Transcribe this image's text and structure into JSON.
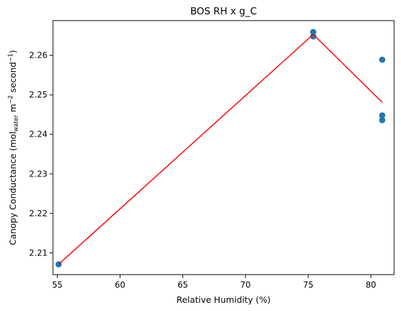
{
  "chart_data": {
    "type": "scatter",
    "title": "BOS RH x g_C",
    "xlabel": "Relative Humidity (%)",
    "ylabel": {
      "base": "Canopy Conductance (mol",
      "sub": "water",
      "mid1": " m",
      "sup1": "−2",
      "mid2": " second",
      "sup2": "−1",
      "end": ")"
    },
    "xlim": [
      54.65,
      81.85
    ],
    "ylim": [
      2.2045,
      2.2688
    ],
    "xticks": [
      55,
      60,
      65,
      70,
      75,
      80
    ],
    "yticks": [
      2.21,
      2.22,
      2.23,
      2.24,
      2.25,
      2.26
    ],
    "ytick_labels": [
      "2.21",
      "2.22",
      "2.23",
      "2.24",
      "2.25",
      "2.26"
    ],
    "grid": false,
    "series": [
      {
        "kind": "points",
        "color": "#1f77b4",
        "points": [
          {
            "x": 55.1,
            "y": 2.2071
          },
          {
            "x": 75.4,
            "y": 2.2659
          },
          {
            "x": 75.4,
            "y": 2.2648
          },
          {
            "x": 80.9,
            "y": 2.2589
          },
          {
            "x": 80.9,
            "y": 2.2448
          },
          {
            "x": 80.9,
            "y": 2.2436
          }
        ]
      },
      {
        "kind": "line",
        "color": "#ff0000",
        "points": [
          {
            "x": 55.1,
            "y": 2.2071
          },
          {
            "x": 75.4,
            "y": 2.2653
          },
          {
            "x": 80.9,
            "y": 2.2481
          }
        ]
      }
    ]
  }
}
